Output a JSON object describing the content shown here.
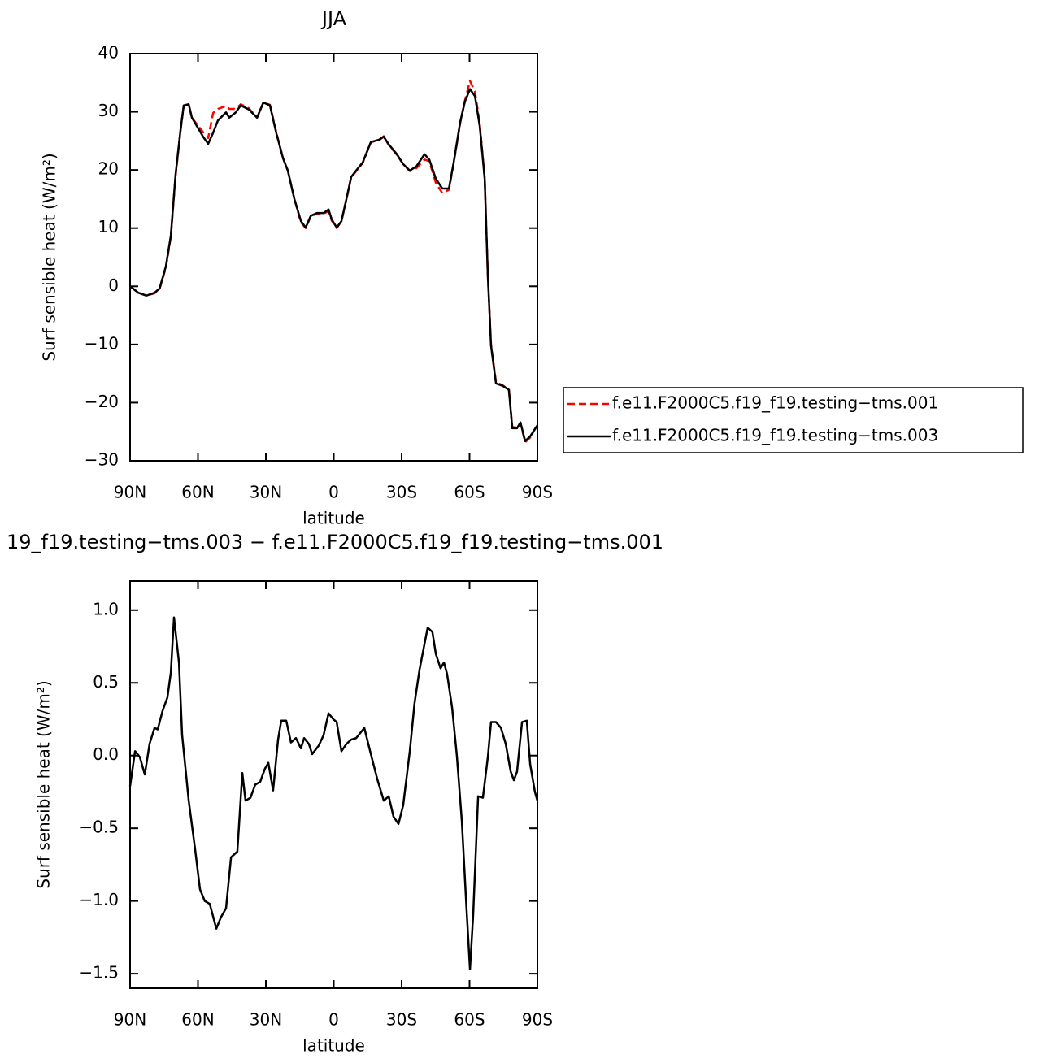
{
  "chart_data": [
    {
      "type": "line",
      "title": "JJA",
      "xlabel": "latitude",
      "ylabel": "Surf sensible heat (W/m²)",
      "xlim": [
        90,
        -90
      ],
      "xticks": [
        {
          "value": 90,
          "label": "90N"
        },
        {
          "value": 60,
          "label": "60N"
        },
        {
          "value": 30,
          "label": "30N"
        },
        0,
        {
          "value": -30,
          "label": "30S"
        },
        {
          "value": -60,
          "label": "60S"
        },
        {
          "value": -90,
          "label": "90S"
        }
      ],
      "ylim": [
        -30,
        40
      ],
      "yticks": [
        {
          "value": -30,
          "label": "−30"
        },
        {
          "value": -20,
          "label": "−20"
        },
        {
          "value": -10,
          "label": "−10"
        },
        0,
        10,
        20,
        30,
        40
      ],
      "legend": "right",
      "x": [
        90,
        86.4,
        82.8,
        79.2,
        77,
        74.2,
        72,
        69.9,
        67.7,
        66.3,
        64.1,
        62.7,
        59.8,
        57.7,
        55.5,
        53.3,
        51.2,
        47.6,
        46.2,
        43.3,
        41.1,
        37.5,
        33.9,
        31.1,
        28.2,
        25.3,
        22.4,
        20.3,
        17.4,
        14.5,
        12.4,
        10.2,
        7.4,
        4.5,
        2.3,
        0.9,
        -1.3,
        -3.4,
        -5.6,
        -7.7,
        -9.9,
        -12.8,
        -16.4,
        -20,
        -22.1,
        -24.3,
        -27.9,
        -30.7,
        -33.6,
        -36.5,
        -40.1,
        -42.2,
        -45.1,
        -48,
        -50.9,
        -53,
        -55.9,
        -58,
        -60.2,
        -62.4,
        -64.5,
        -66.7,
        -68.1,
        -69.5,
        -71.7,
        -74.6,
        -77.4,
        -78.9,
        -81,
        -82.5,
        -84.6,
        -86.8,
        -90
      ],
      "series": [
        {
          "name": "f.e11.F2000C5.f19_f19.testing−tms.001",
          "color": "#ff0000",
          "style": "dashed",
          "values": [
            0,
            -1.1,
            -1.6,
            -1.2,
            -0.5,
            3.2,
            8.5,
            19,
            26.8,
            31,
            31.3,
            29,
            27.5,
            26.5,
            25.5,
            29.8,
            30.5,
            31,
            30.5,
            30.5,
            31.3,
            30.6,
            29,
            31.6,
            31.2,
            26.3,
            22,
            19.9,
            15,
            11,
            10,
            12,
            12.5,
            12.5,
            12.9,
            11.3,
            10,
            11.2,
            15,
            18.7,
            19.8,
            21.2,
            24.8,
            25.1,
            25.8,
            24.3,
            22.6,
            21,
            19.8,
            20.3,
            21.8,
            21.5,
            17.8,
            16,
            16.6,
            21.2,
            28.1,
            32,
            35.3,
            33.5,
            28,
            18.6,
            1.8,
            -10,
            -16.5,
            -17,
            -17.8,
            -24.2,
            -24.3,
            -23.5,
            -26.8,
            -26,
            -23.8
          ]
        },
        {
          "name": "f.e11.F2000C5.f19_f19.testing−tms.003",
          "color": "#000000",
          "style": "solid",
          "values": [
            0,
            -1.1,
            -1.6,
            -1.1,
            -0.4,
            3.4,
            8.7,
            19.2,
            26.9,
            31.1,
            31.3,
            29,
            27.1,
            25.7,
            24.5,
            26.4,
            28.5,
            29.9,
            29,
            29.9,
            31.1,
            30.4,
            29,
            31.6,
            31.1,
            26.2,
            22,
            19.9,
            15,
            11.2,
            10.1,
            12.1,
            12.6,
            12.6,
            13.2,
            11.5,
            10.1,
            11.2,
            15,
            18.8,
            19.9,
            21.3,
            24.8,
            25.2,
            25.7,
            24.4,
            22.7,
            21,
            19.9,
            20.6,
            22.7,
            21.8,
            18.5,
            16.8,
            16.8,
            21.3,
            28.3,
            31.8,
            33.9,
            32.7,
            27.6,
            18.5,
            1.7,
            -10.2,
            -16.7,
            -17.1,
            -17.8,
            -24.4,
            -24.4,
            -23.4,
            -26.6,
            -25.8,
            -23.9
          ]
        }
      ]
    },
    {
      "type": "line",
      "title": "19_f19.testing−tms.003 − f.e11.F2000C5.f19_f19.testing−tms.001",
      "xlabel": "latitude",
      "ylabel": "Surf sensible heat (W/m²)",
      "xlim": [
        90,
        -90
      ],
      "xticks": [
        {
          "value": 90,
          "label": "90N"
        },
        {
          "value": 60,
          "label": "60N"
        },
        {
          "value": 30,
          "label": "30N"
        },
        0,
        {
          "value": -30,
          "label": "30S"
        },
        {
          "value": -60,
          "label": "60S"
        },
        {
          "value": -90,
          "label": "90S"
        }
      ],
      "ylim": [
        -1.6,
        1.2
      ],
      "yticks": [
        {
          "value": -1.5,
          "label": "−1.5"
        },
        {
          "value": -1,
          "label": "−1.0"
        },
        {
          "value": -0.5,
          "label": "−0.5"
        },
        {
          "value": 0,
          "label": "0.0"
        },
        0.5,
        {
          "value": 1,
          "label": "1.0"
        }
      ],
      "color": "#000000",
      "x": [
        90,
        87.8,
        85.7,
        83.5,
        81.4,
        79.2,
        77.8,
        75.6,
        73.5,
        72,
        70.6,
        68.4,
        67,
        64.1,
        61.3,
        59.1,
        57,
        54.8,
        51.9,
        49.8,
        47.6,
        45.4,
        42.6,
        40.4,
        39,
        36.8,
        34.7,
        32.5,
        30.4,
        28.9,
        26.8,
        24.6,
        23.2,
        21,
        18.9,
        16.7,
        14.5,
        13.1,
        11,
        9.5,
        6.6,
        4.5,
        2.3,
        0.2,
        -1.3,
        -3.4,
        -5.6,
        -7.7,
        -9.9,
        -13.5,
        -16.4,
        -19.2,
        -22.1,
        -24.3,
        -26.4,
        -28.6,
        -30.7,
        -33.6,
        -35.7,
        -37.9,
        -41.5,
        -43.6,
        -45.1,
        -47.2,
        -48.7,
        -50.1,
        -52.3,
        -54.4,
        -56.6,
        -58.7,
        -60.2,
        -61.6,
        -63.8,
        -65.9,
        -68.1,
        -69.5,
        -71.7,
        -73.9,
        -76,
        -78.2,
        -79.6,
        -81,
        -83.2,
        -85.3,
        -86.8,
        -88.9,
        -90
      ],
      "values": [
        -0.21,
        0.03,
        -0.01,
        -0.13,
        0.08,
        0.19,
        0.18,
        0.31,
        0.4,
        0.57,
        0.95,
        0.64,
        0.14,
        -0.31,
        -0.64,
        -0.92,
        -1,
        -1.02,
        -1.19,
        -1.11,
        -1.05,
        -0.7,
        -0.66,
        -0.12,
        -0.31,
        -0.29,
        -0.2,
        -0.18,
        -0.09,
        -0.05,
        -0.24,
        0.11,
        0.24,
        0.24,
        0.09,
        0.12,
        0.05,
        0.12,
        0.08,
        0.01,
        0.07,
        0.14,
        0.29,
        0.25,
        0.23,
        0.03,
        0.08,
        0.11,
        0.12,
        0.19,
        0.01,
        -0.16,
        -0.31,
        -0.28,
        -0.42,
        -0.47,
        -0.34,
        0.03,
        0.36,
        0.59,
        0.88,
        0.85,
        0.7,
        0.6,
        0.64,
        0.56,
        0.33,
        0,
        -0.45,
        -1.06,
        -1.47,
        -1.1,
        -0.28,
        -0.29,
        -0.01,
        0.23,
        0.23,
        0.19,
        0.08,
        -0.11,
        -0.17,
        -0.11,
        0.23,
        0.24,
        -0.06,
        -0.25,
        -0.31
      ]
    }
  ]
}
